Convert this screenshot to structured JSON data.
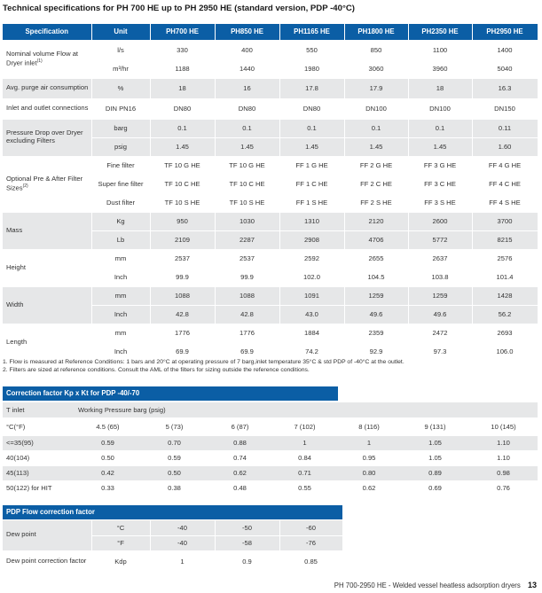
{
  "title": "Technical specifications for PH 700 HE up to PH 2950 HE (standard version, PDP -40°C)",
  "spec": {
    "headers": [
      "Specification",
      "Unit",
      "PH700 HE",
      "PH850 HE",
      "PH1165 HE",
      "PH1800 HE",
      "PH2350 HE",
      "PH2950 HE"
    ],
    "rows": [
      {
        "spec": "Nominal volume Flow at Dryer inlet",
        "spec_sup": "(1)",
        "unit": "l/s",
        "values": [
          "330",
          "400",
          "550",
          "850",
          "1100",
          "1400"
        ]
      },
      {
        "unit": "m³/hr",
        "values": [
          "1188",
          "1440",
          "1980",
          "3060",
          "3960",
          "5040"
        ]
      },
      {
        "spec": "Avg. purge air consumption",
        "unit": "%",
        "values": [
          "18",
          "16",
          "17.8",
          "17.9",
          "18",
          "16.3"
        ]
      },
      {
        "spec": "Inlet and outlet connections",
        "unit": "DIN PN16",
        "values": [
          "DN80",
          "DN80",
          "DN80",
          "DN100",
          "DN100",
          "DN150"
        ]
      },
      {
        "spec": "Pressure Drop over Dryer excluding Filters",
        "unit": "barg",
        "values": [
          "0.1",
          "0.1",
          "0.1",
          "0.1",
          "0.1",
          "0.11"
        ]
      },
      {
        "unit": "psig",
        "values": [
          "1.45",
          "1.45",
          "1.45",
          "1.45",
          "1.45",
          "1.60"
        ]
      },
      {
        "spec": "Optional Pre & After Filter Sizes",
        "spec_sup": "(2)",
        "unit": "Fine filter",
        "values": [
          "TF 10 G HE",
          "TF 10 G HE",
          "FF 1 G HE",
          "FF 2 G HE",
          "FF 3 G HE",
          "FF 4 G HE"
        ]
      },
      {
        "unit": "Super fine filter",
        "values": [
          "TF 10 C HE",
          "TF 10 C HE",
          "FF 1 C HE",
          "FF 2 C HE",
          "FF 3 C HE",
          "FF 4 C HE"
        ]
      },
      {
        "unit": "Dust filter",
        "values": [
          "TF 10 S HE",
          "TF 10 S HE",
          "FF 1 S HE",
          "FF 2 S HE",
          "FF 3 S HE",
          "FF 4 S HE"
        ]
      },
      {
        "spec": "Mass",
        "unit": "Kg",
        "values": [
          "950",
          "1030",
          "1310",
          "2120",
          "2600",
          "3700"
        ]
      },
      {
        "unit": "Lb",
        "values": [
          "2109",
          "2287",
          "2908",
          "4706",
          "5772",
          "8215"
        ]
      },
      {
        "spec": "Height",
        "unit": "mm",
        "values": [
          "2537",
          "2537",
          "2592",
          "2655",
          "2637",
          "2576"
        ]
      },
      {
        "unit": "Inch",
        "values": [
          "99.9",
          "99.9",
          "102.0",
          "104.5",
          "103.8",
          "101.4"
        ]
      },
      {
        "spec": "Width",
        "unit": "mm",
        "values": [
          "1088",
          "1088",
          "1091",
          "1259",
          "1259",
          "1428"
        ]
      },
      {
        "unit": "Inch",
        "values": [
          "42.8",
          "42.8",
          "43.0",
          "49.6",
          "49.6",
          "56.2"
        ]
      },
      {
        "spec": "Length",
        "unit": "mm",
        "values": [
          "1776",
          "1776",
          "1884",
          "2359",
          "2472",
          "2693"
        ]
      },
      {
        "unit": "Inch",
        "values": [
          "69.9",
          "69.9",
          "74.2",
          "92.9",
          "97.3",
          "106.0"
        ]
      }
    ]
  },
  "notes": [
    "1. Flow is measured at Reference Conditions: 1 bars and 20°C at operating pressure of 7 barg,inlet temperature 35°C & std PDP of -40°C at the outlet.",
    "2. Filters are sized at reference conditions. Consult the AML of the filters for sizing outside the reference conditions."
  ],
  "correction": {
    "title": "Correction factor Kp x Kt for PDP -40/-70",
    "t_inlet": "T inlet",
    "wp_label": "Working Pressure barg (psig)",
    "unit_label": "°C(°F)",
    "pressures": [
      "4.5 (65)",
      "5 (73)",
      "6 (87)",
      "7 (102)",
      "8 (116)",
      "9 (131)",
      "10 (145)"
    ],
    "rows": [
      {
        "temp": "<=35(95)",
        "values": [
          "0.59",
          "0.70",
          "0.88",
          "1",
          "1",
          "1.05",
          "1.10"
        ]
      },
      {
        "temp": "40(104)",
        "values": [
          "0.50",
          "0.59",
          "0.74",
          "0.84",
          "0.95",
          "1.05",
          "1.10"
        ]
      },
      {
        "temp": "45(113)",
        "values": [
          "0.42",
          "0.50",
          "0.62",
          "0.71",
          "0.80",
          "0.89",
          "0.98"
        ]
      },
      {
        "temp": "50(122) for HIT",
        "values": [
          "0.33",
          "0.38",
          "0.48",
          "0.55",
          "0.62",
          "0.69",
          "0.76"
        ]
      }
    ]
  },
  "pdp": {
    "title": "PDP Flow correction factor",
    "rows": [
      {
        "label": "Dew point",
        "unit": "°C",
        "values": [
          "-40",
          "-50",
          "-60"
        ]
      },
      {
        "unit": "°F",
        "values": [
          "-40",
          "-58",
          "-76"
        ]
      },
      {
        "label": "Dew point correction factor",
        "unit": "Kdp",
        "values": [
          "1",
          "0.9",
          "0.85"
        ]
      }
    ]
  },
  "footer": {
    "text": "PH 700-2950 HE - Welded vessel heatless adsorption dryers",
    "page": "13"
  },
  "colors": {
    "brand": "#0b5ea5",
    "shade": "#e6e7e8"
  }
}
